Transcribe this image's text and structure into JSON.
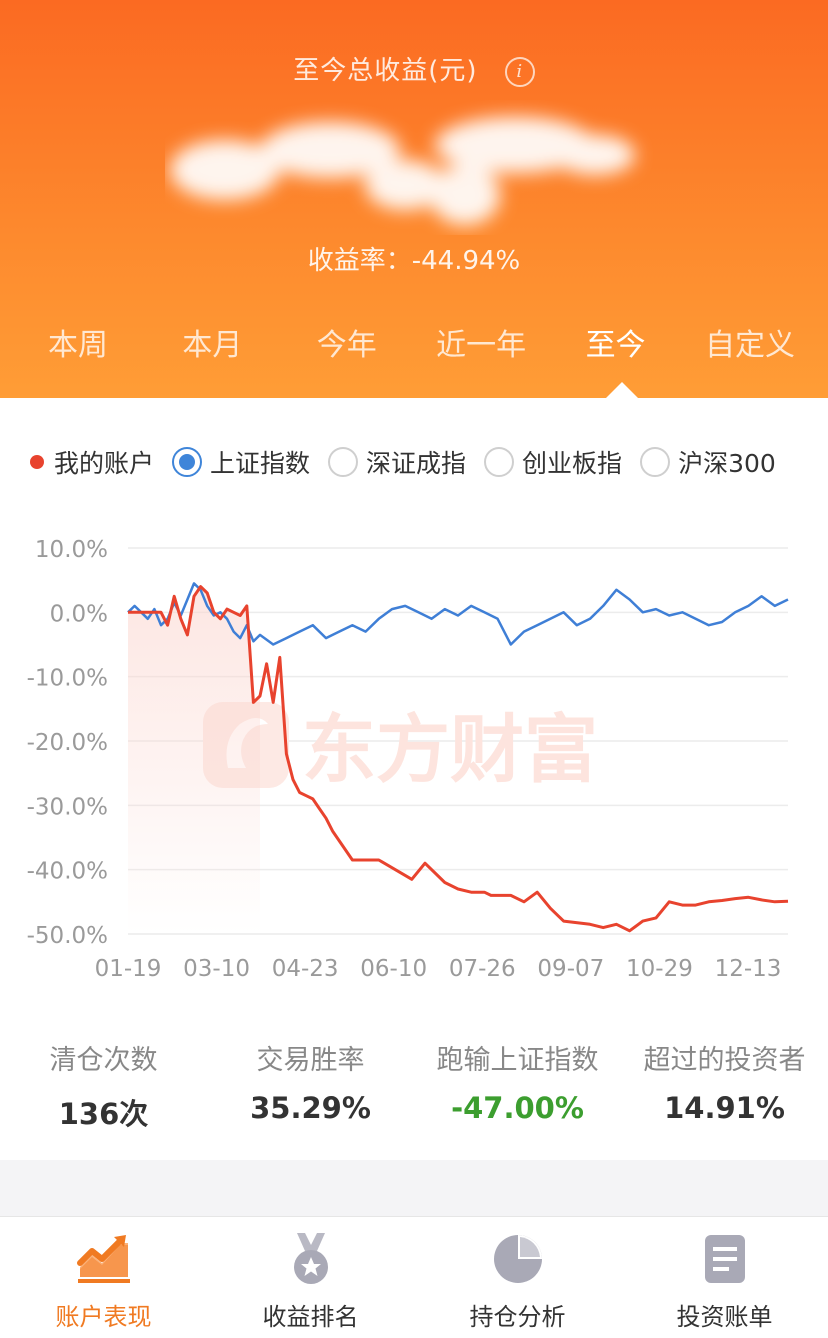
{
  "header": {
    "title": "至今总收益(元)",
    "info_icon": "info-icon",
    "rate_label": "收益率：",
    "rate_value": "-44.94%"
  },
  "tabs": [
    {
      "label": "本周"
    },
    {
      "label": "本月"
    },
    {
      "label": "今年"
    },
    {
      "label": "近一年"
    },
    {
      "label": "至今",
      "active": true
    },
    {
      "label": "自定义"
    }
  ],
  "legend": {
    "mine": "我的账户",
    "options": [
      {
        "label": "上证指数",
        "selected": true
      },
      {
        "label": "深证成指",
        "selected": false
      },
      {
        "label": "创业板指",
        "selected": false
      },
      {
        "label": "沪深300",
        "selected": false
      }
    ]
  },
  "colors": {
    "mine": "#e8432e",
    "index": "#3f7fd6",
    "accent": "#fb6a22",
    "green": "#3c9e2f"
  },
  "watermark": "东方财富",
  "chart_data": {
    "type": "line",
    "ylim": [
      -50,
      10
    ],
    "y_ticks": [
      "10.0%",
      "0.0%",
      "-10.0%",
      "-20.0%",
      "-30.0%",
      "-40.0%",
      "-50.0%"
    ],
    "x_ticks": [
      "01-19",
      "03-10",
      "04-23",
      "06-10",
      "07-26",
      "09-07",
      "10-29",
      "12-13"
    ],
    "series": [
      {
        "name": "我的账户",
        "x": [
          0,
          2,
          5,
          6,
          7,
          8,
          9,
          10,
          11,
          12,
          13,
          14,
          15,
          16,
          17,
          18,
          19,
          20,
          21,
          22,
          23,
          24,
          25,
          26,
          27,
          28,
          29,
          30,
          31,
          34,
          38,
          43,
          45,
          48,
          50,
          52,
          54,
          55,
          56,
          58,
          60,
          62,
          64,
          66,
          70,
          72,
          74,
          76,
          78,
          80,
          82,
          84,
          86,
          88,
          90,
          92,
          94,
          96,
          98,
          100
        ],
        "values": [
          0,
          0,
          0,
          -2,
          2.5,
          -1,
          -3.5,
          2.5,
          4,
          3,
          0,
          -1,
          0.5,
          0,
          -0.5,
          1,
          -14,
          -13,
          -8,
          -14,
          -7,
          -22,
          -26,
          -28,
          -28.5,
          -29,
          -30.5,
          -32,
          -34,
          -38.5,
          -38.5,
          -41.5,
          -39,
          -42,
          -43,
          -43.5,
          -43.5,
          -44,
          -44,
          -44,
          -45,
          -43.5,
          -46,
          -48,
          -48.5,
          -49,
          -48.5,
          -49.5,
          -48,
          -47.5,
          -45,
          -45.5,
          -45.5,
          -45,
          -44.8,
          -44.5,
          -44.3,
          -44.7,
          -45,
          -44.9
        ]
      },
      {
        "name": "上证指数",
        "x": [
          0,
          1,
          2,
          3,
          4,
          5,
          6,
          7,
          8,
          9,
          10,
          11,
          12,
          13,
          14,
          15,
          16,
          17,
          18,
          19,
          20,
          22,
          24,
          26,
          28,
          30,
          32,
          34,
          36,
          38,
          40,
          42,
          44,
          46,
          48,
          50,
          52,
          54,
          56,
          58,
          60,
          62,
          64,
          66,
          68,
          70,
          72,
          74,
          76,
          78,
          80,
          82,
          84,
          86,
          88,
          90,
          92,
          94,
          96,
          98,
          100
        ],
        "values": [
          0,
          1,
          0,
          -1,
          0.5,
          -2,
          -1,
          1.5,
          -0.5,
          2,
          4.5,
          3.5,
          1,
          -0.5,
          0,
          -1,
          -3,
          -4,
          -2,
          -4.5,
          -3.5,
          -5,
          -4,
          -3,
          -2,
          -4,
          -3,
          -2,
          -3,
          -1,
          0.5,
          1,
          0,
          -1,
          0.5,
          -0.5,
          1,
          0,
          -1,
          -5,
          -3,
          -2,
          -1,
          0,
          -2,
          -1,
          1,
          3.5,
          2,
          0,
          0.5,
          -0.5,
          0,
          -1,
          -2,
          -1.5,
          0,
          1,
          2.5,
          1,
          2
        ]
      }
    ]
  },
  "stats": [
    {
      "label": "清仓次数",
      "value": "136次"
    },
    {
      "label": "交易胜率",
      "value": "35.29%"
    },
    {
      "label": "跑输上证指数",
      "value": "-47.00%",
      "tone": "green"
    },
    {
      "label": "超过的投资者",
      "value": "14.91%"
    }
  ],
  "bottom_nav": [
    {
      "label": "账户表现",
      "icon": "trend-chart-icon",
      "active": true
    },
    {
      "label": "收益排名",
      "icon": "medal-icon"
    },
    {
      "label": "持仓分析",
      "icon": "pie-chart-icon"
    },
    {
      "label": "投资账单",
      "icon": "document-icon"
    }
  ]
}
